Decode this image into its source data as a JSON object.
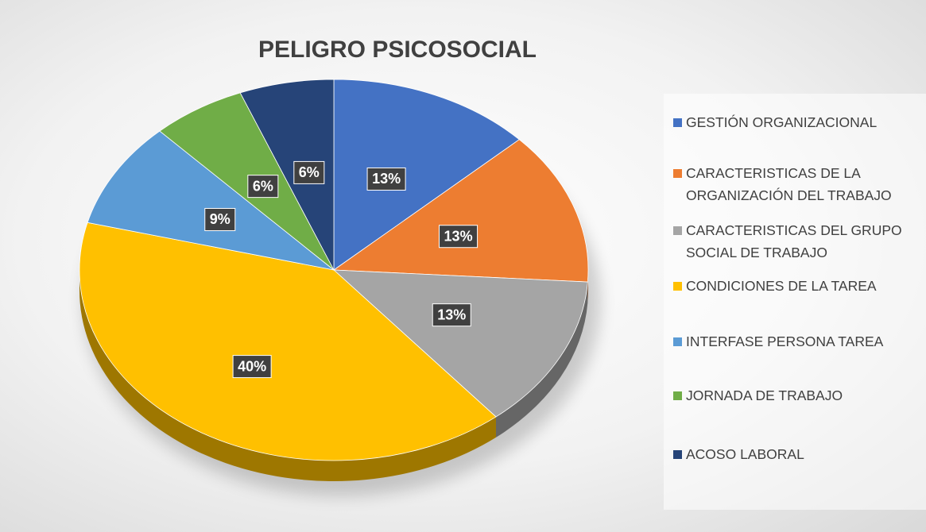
{
  "chart_data": {
    "type": "pie",
    "title": "PELIGRO PSICOSOCIAL",
    "categories": [
      "GESTIÓN ORGANIZACIONAL",
      "CARACTERISTICAS DE LA ORGANIZACIÓN DEL TRABAJO",
      "CARACTERISTICAS DEL GRUPO SOCIAL DE TRABAJO",
      "CONDICIONES DE LA TAREA",
      "INTERFASE PERSONA TAREA",
      "JORNADA DE TRABAJO",
      "ACOSO LABORAL"
    ],
    "values": [
      13,
      13,
      13,
      40,
      9,
      6,
      6
    ],
    "value_labels": [
      "13%",
      "13%",
      "13%",
      "40%",
      "9%",
      "6%",
      "6%"
    ],
    "colors": [
      "#4472c4",
      "#ed7d31",
      "#a5a5a5",
      "#ffc000",
      "#5b9bd5",
      "#70ad47",
      "#264478"
    ],
    "legend": "right"
  }
}
